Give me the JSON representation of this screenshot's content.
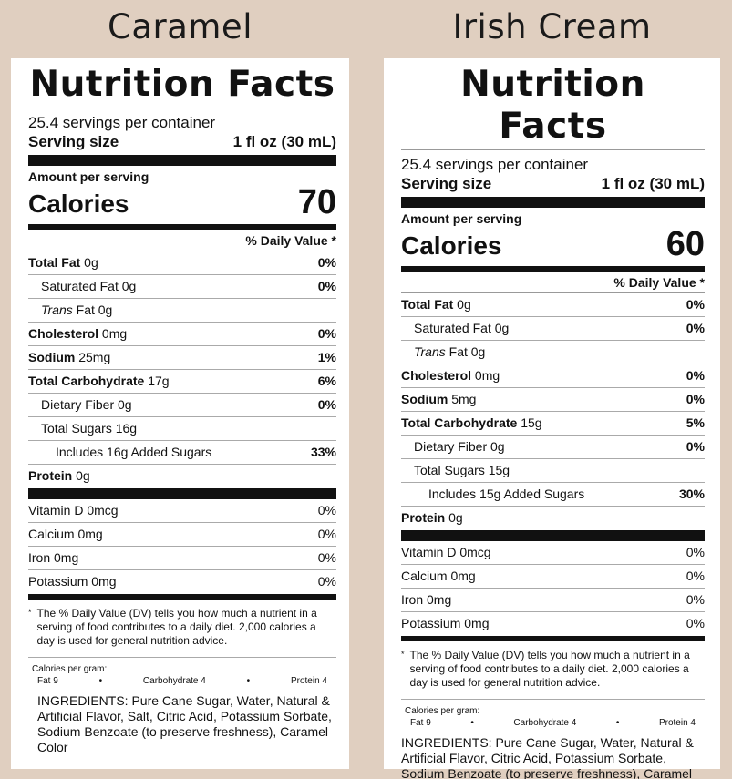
{
  "labels": [
    {
      "flavor": "Caramel",
      "heading": "Nutrition Facts",
      "servings": "25.4 servings per container",
      "serving_size_label": "Serving size",
      "serving_size_value": "1 fl oz (30 mL)",
      "amount_per_serving": "Amount per serving",
      "calories_label": "Calories",
      "calories_value": "70",
      "dv_header": "% Daily Value *",
      "nutrients": [
        {
          "bold": "Total Fat",
          "rest": " 0g",
          "pct": "0%"
        },
        {
          "plain": "Saturated Fat 0g",
          "pct": "0%"
        },
        {
          "italic": "Trans",
          "rest": " Fat 0g",
          "pct": ""
        },
        {
          "bold": "Cholesterol",
          "rest": " 0mg",
          "pct": "0%"
        },
        {
          "bold": "Sodium",
          "rest": " 25mg",
          "pct": "1%"
        },
        {
          "bold": "Total Carbohydrate",
          "rest": " 17g",
          "pct": "6%"
        },
        {
          "plain": "Dietary Fiber 0g",
          "pct": "0%"
        },
        {
          "plain": "Total Sugars 16g",
          "pct": ""
        },
        {
          "plain": "Includes 16g Added Sugars",
          "pct": "33%"
        },
        {
          "bold": "Protein",
          "rest": " 0g",
          "pct": ""
        }
      ],
      "vitamins": [
        {
          "name": "Vitamin D 0mcg",
          "pct": "0%"
        },
        {
          "name": "Calcium 0mg",
          "pct": "0%"
        },
        {
          "name": "Iron 0mg",
          "pct": "0%"
        },
        {
          "name": "Potassium 0mg",
          "pct": "0%"
        }
      ],
      "footnote_star": "*",
      "footnote": "The % Daily Value (DV) tells you how much a nutrient in a serving of food contributes to a daily diet. 2,000 calories a day is used for general nutrition advice.",
      "calories_per_gram": "Calories per gram:",
      "cpg_fat": "Fat 9",
      "cpg_bullet": "•",
      "cpg_carb": "Carbohydrate 4",
      "cpg_protein": "Protein 4",
      "ingredients_label": "INGREDIENTS:",
      "ingredients": " Pure Cane Sugar, Water, Natural & Artificial Flavor, Salt, Citric Acid, Potassium Sorbate, Sodium Benzoate (to preserve freshness), Caramel Color"
    },
    {
      "flavor": "Irish Cream",
      "heading": "Nutrition Facts",
      "servings": "25.4 servings per container",
      "serving_size_label": "Serving size",
      "serving_size_value": "1 fl oz (30 mL)",
      "amount_per_serving": "Amount per serving",
      "calories_label": "Calories",
      "calories_value": "60",
      "dv_header": "% Daily Value *",
      "nutrients": [
        {
          "bold": "Total Fat",
          "rest": " 0g",
          "pct": "0%"
        },
        {
          "plain": "Saturated Fat 0g",
          "pct": "0%"
        },
        {
          "italic": "Trans",
          "rest": " Fat 0g",
          "pct": ""
        },
        {
          "bold": "Cholesterol",
          "rest": " 0mg",
          "pct": "0%"
        },
        {
          "bold": "Sodium",
          "rest": " 5mg",
          "pct": "0%"
        },
        {
          "bold": "Total Carbohydrate",
          "rest": " 15g",
          "pct": "5%"
        },
        {
          "plain": "Dietary Fiber 0g",
          "pct": "0%"
        },
        {
          "plain": "Total Sugars 15g",
          "pct": ""
        },
        {
          "plain": "Includes 15g Added Sugars",
          "pct": "30%"
        },
        {
          "bold": "Protein",
          "rest": " 0g",
          "pct": ""
        }
      ],
      "vitamins": [
        {
          "name": "Vitamin D 0mcg",
          "pct": "0%"
        },
        {
          "name": "Calcium 0mg",
          "pct": "0%"
        },
        {
          "name": "Iron 0mg",
          "pct": "0%"
        },
        {
          "name": "Potassium 0mg",
          "pct": "0%"
        }
      ],
      "footnote_star": "*",
      "footnote": "The % Daily Value (DV) tells you how much a nutrient in a serving of food contributes to a daily diet. 2,000 calories a day is used for general nutrition advice.",
      "calories_per_gram": "Calories per gram:",
      "cpg_fat": "Fat 9",
      "cpg_bullet": "•",
      "cpg_carb": "Carbohydrate 4",
      "cpg_protein": "Protein 4",
      "ingredients_label": "INGREDIENTS:",
      "ingredients": " Pure Cane Sugar, Water, Natural & Artificial Flavor, Citric Acid, Potassium Sorbate, Sodium Benzoate (to preserve freshness), Caramel Color"
    }
  ]
}
